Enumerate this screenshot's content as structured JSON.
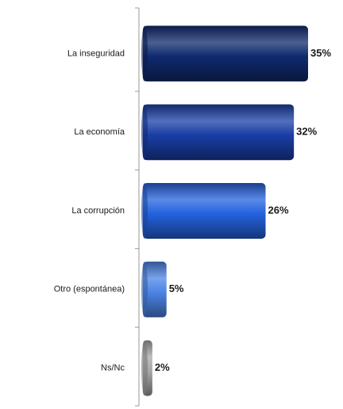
{
  "chart_data": {
    "type": "bar",
    "orientation": "horizontal",
    "categories": [
      "La inseguridad",
      "La economía",
      "La corrupción",
      "Otro (espontánea)",
      "Ns/Nc"
    ],
    "values": [
      35,
      32,
      26,
      5,
      2
    ],
    "value_labels": [
      "35%",
      "32%",
      "26%",
      "5%",
      "2%"
    ],
    "colors": [
      "#0f2a6e",
      "#1a3ea6",
      "#2462de",
      "#4c84e6",
      "#a8a8a8"
    ]
  }
}
